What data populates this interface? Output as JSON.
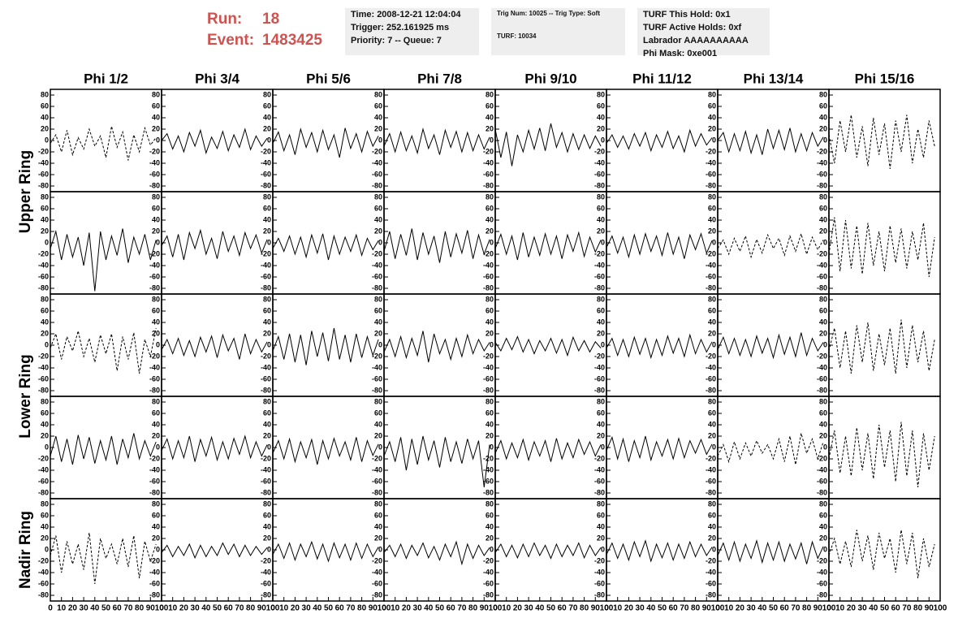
{
  "header": {
    "run_label": "Run:",
    "run": "18",
    "event_label": "Event:",
    "event": "1483425"
  },
  "info": [
    [
      "Time: 2008-12-21 12:04:04",
      "Trigger: 252.161925 ms",
      "Priority: 7 -- Queue: 7"
    ],
    [
      "Trig Num: 10025 -- Trig Type: Soft",
      "TURF: 10034"
    ],
    [
      "TURF This Hold: 0x1",
      "TURF Active Holds: 0xf",
      "Labrador AAAAAAAAAA",
      "Phi Mask: 0xe001"
    ]
  ],
  "chart_data": {
    "type": "line",
    "columns": [
      "Phi 1/2",
      "Phi 3/4",
      "Phi 5/6",
      "Phi 7/8",
      "Phi 9/10",
      "Phi 11/12",
      "Phi 13/14",
      "Phi 15/16"
    ],
    "row_labels": [
      "Upper Ring",
      "Lower Ring",
      "Nadir Ring"
    ],
    "xlim": [
      0,
      100
    ],
    "xticks": [
      0,
      10,
      20,
      30,
      40,
      50,
      60,
      70,
      80,
      90,
      100
    ],
    "ylim": [
      -90,
      90
    ],
    "yticks": [
      80,
      60,
      40,
      20,
      0,
      -20,
      -40,
      -60,
      -80
    ],
    "color": "#000000",
    "x": [
      0,
      5,
      10,
      15,
      20,
      25,
      30,
      35,
      40,
      45,
      50,
      55,
      60,
      65,
      70,
      75,
      80,
      85,
      90,
      95
    ],
    "panels": [
      [
        {
          "dashed": true,
          "values": [
            -5,
            10,
            -20,
            18,
            -25,
            5,
            -15,
            20,
            -10,
            8,
            -30,
            25,
            -12,
            15,
            -35,
            10,
            -20,
            22,
            -8,
            5
          ]
        },
        {
          "dashed": false,
          "values": [
            0,
            12,
            -15,
            8,
            -20,
            14,
            -10,
            18,
            -22,
            6,
            -14,
            16,
            -18,
            10,
            -12,
            20,
            -16,
            8,
            -10,
            4
          ]
        },
        {
          "dashed": false,
          "values": [
            -5,
            15,
            -18,
            10,
            -25,
            20,
            -12,
            14,
            -20,
            18,
            -16,
            10,
            -30,
            22,
            -14,
            12,
            -20,
            16,
            -10,
            8
          ]
        },
        {
          "dashed": false,
          "values": [
            -10,
            12,
            -20,
            15,
            -18,
            8,
            -22,
            20,
            -14,
            10,
            -25,
            18,
            -12,
            16,
            -20,
            14,
            -18,
            10,
            -15,
            6
          ]
        },
        {
          "dashed": false,
          "values": [
            20,
            -30,
            15,
            -45,
            10,
            -20,
            18,
            -15,
            22,
            -18,
            30,
            -12,
            14,
            -20,
            12,
            -16,
            10,
            -14,
            8,
            -10
          ]
        },
        {
          "dashed": false,
          "values": [
            -5,
            10,
            -12,
            8,
            -15,
            12,
            -10,
            14,
            -18,
            10,
            -12,
            16,
            -14,
            8,
            -20,
            18,
            -10,
            12,
            -8,
            5
          ]
        },
        {
          "dashed": false,
          "values": [
            0,
            14,
            -20,
            12,
            -18,
            16,
            -22,
            10,
            -25,
            20,
            -14,
            18,
            -16,
            22,
            -20,
            12,
            -18,
            14,
            -10,
            6
          ]
        },
        {
          "dashed": true,
          "values": [
            10,
            -40,
            35,
            -20,
            45,
            -30,
            25,
            -45,
            40,
            -25,
            30,
            -50,
            35,
            -20,
            45,
            -40,
            20,
            -30,
            35,
            -10
          ]
        }
      ],
      [
        {
          "dashed": false,
          "values": [
            -10,
            20,
            -30,
            15,
            -25,
            10,
            -40,
            18,
            -85,
            20,
            -30,
            12,
            -22,
            25,
            -35,
            10,
            -20,
            15,
            -30,
            5
          ]
        },
        {
          "dashed": false,
          "values": [
            -5,
            12,
            -25,
            15,
            -30,
            18,
            -10,
            22,
            -20,
            8,
            -28,
            20,
            -15,
            12,
            -22,
            18,
            -10,
            14,
            -18,
            6
          ]
        },
        {
          "dashed": false,
          "values": [
            -10,
            8,
            -15,
            12,
            -20,
            10,
            -25,
            14,
            -18,
            16,
            -30,
            12,
            -20,
            10,
            -15,
            14,
            -22,
            8,
            -12,
            4
          ]
        },
        {
          "dashed": false,
          "values": [
            -15,
            20,
            -28,
            15,
            -22,
            25,
            -30,
            18,
            -20,
            12,
            -35,
            20,
            -25,
            16,
            -18,
            22,
            -28,
            14,
            -20,
            6
          ]
        },
        {
          "dashed": false,
          "values": [
            -10,
            15,
            -20,
            12,
            -30,
            18,
            -25,
            10,
            -22,
            16,
            -20,
            12,
            -28,
            14,
            -15,
            18,
            -24,
            10,
            -16,
            5
          ]
        },
        {
          "dashed": false,
          "values": [
            -8,
            12,
            -18,
            10,
            -25,
            14,
            -20,
            16,
            -15,
            12,
            -22,
            18,
            -20,
            10,
            -28,
            14,
            -12,
            16,
            -18,
            4
          ]
        },
        {
          "dashed": true,
          "values": [
            -10,
            5,
            -20,
            8,
            -15,
            12,
            -25,
            6,
            -18,
            14,
            -10,
            8,
            -22,
            12,
            -15,
            16,
            -20,
            10,
            -12,
            5
          ]
        },
        {
          "dashed": true,
          "values": [
            -20,
            45,
            -50,
            40,
            -45,
            30,
            -55,
            35,
            -40,
            20,
            -50,
            30,
            -35,
            25,
            -45,
            20,
            -30,
            35,
            -60,
            10
          ]
        }
      ],
      [
        {
          "dashed": true,
          "values": [
            -5,
            20,
            -25,
            15,
            -10,
            25,
            -20,
            12,
            -30,
            18,
            -15,
            20,
            -45,
            15,
            -25,
            22,
            -50,
            10,
            -20,
            30
          ]
        },
        {
          "dashed": false,
          "values": [
            -8,
            10,
            -15,
            12,
            -18,
            8,
            -20,
            14,
            -12,
            16,
            -22,
            18,
            -10,
            12,
            -25,
            20,
            -15,
            10,
            -12,
            6
          ]
        },
        {
          "dashed": false,
          "values": [
            -10,
            15,
            -25,
            20,
            -30,
            18,
            -35,
            25,
            -20,
            22,
            -28,
            30,
            -25,
            18,
            -30,
            20,
            -22,
            15,
            -18,
            10
          ]
        },
        {
          "dashed": false,
          "values": [
            -12,
            10,
            -20,
            15,
            -22,
            12,
            -18,
            25,
            -30,
            20,
            -15,
            10,
            -25,
            12,
            -20,
            18,
            -15,
            10,
            -10,
            5
          ]
        },
        {
          "dashed": false,
          "values": [
            5,
            -10,
            12,
            -8,
            15,
            -12,
            10,
            -15,
            8,
            -10,
            12,
            -14,
            10,
            -18,
            14,
            -10,
            8,
            -12,
            6,
            -5
          ]
        },
        {
          "dashed": false,
          "values": [
            -5,
            12,
            -18,
            10,
            -20,
            14,
            -16,
            12,
            -22,
            10,
            -18,
            16,
            -14,
            12,
            -20,
            18,
            -15,
            10,
            -12,
            6
          ]
        },
        {
          "dashed": false,
          "values": [
            -8,
            14,
            -15,
            12,
            -18,
            10,
            -20,
            16,
            -14,
            12,
            -22,
            18,
            -16,
            14,
            -20,
            22,
            -18,
            12,
            -10,
            5
          ]
        },
        {
          "dashed": true,
          "values": [
            -10,
            30,
            -40,
            25,
            -50,
            35,
            -30,
            40,
            -45,
            20,
            -35,
            30,
            -50,
            45,
            -40,
            35,
            -30,
            25,
            -45,
            10
          ]
        }
      ],
      [
        {
          "dashed": false,
          "values": [
            -15,
            20,
            -25,
            15,
            -30,
            22,
            -20,
            18,
            -28,
            12,
            -22,
            20,
            -30,
            15,
            -18,
            25,
            -20,
            12,
            -15,
            10
          ]
        },
        {
          "dashed": false,
          "values": [
            -5,
            15,
            -20,
            12,
            -18,
            20,
            -25,
            14,
            -15,
            18,
            -22,
            10,
            -20,
            16,
            -12,
            20,
            -18,
            10,
            -15,
            5
          ]
        },
        {
          "dashed": false,
          "values": [
            -10,
            12,
            -20,
            15,
            -25,
            10,
            -18,
            14,
            -30,
            12,
            -20,
            16,
            -15,
            10,
            -22,
            18,
            -25,
            12,
            -14,
            6
          ]
        },
        {
          "dashed": false,
          "values": [
            -15,
            10,
            -25,
            18,
            -40,
            15,
            -30,
            20,
            -22,
            12,
            -35,
            18,
            -25,
            10,
            -28,
            15,
            -20,
            12,
            -70,
            5
          ]
        },
        {
          "dashed": false,
          "values": [
            -10,
            12,
            -20,
            8,
            -18,
            14,
            -22,
            10,
            -15,
            12,
            -25,
            16,
            -20,
            8,
            -18,
            14,
            -12,
            10,
            -15,
            5
          ]
        },
        {
          "dashed": false,
          "values": [
            -5,
            18,
            -20,
            15,
            -25,
            12,
            -18,
            20,
            -22,
            10,
            -15,
            14,
            -20,
            16,
            -18,
            12,
            -10,
            14,
            -12,
            6
          ]
        },
        {
          "dashed": true,
          "values": [
            -15,
            5,
            -25,
            10,
            -20,
            8,
            -15,
            12,
            -10,
            5,
            -20,
            15,
            -25,
            20,
            -30,
            25,
            -10,
            15,
            -20,
            10
          ]
        },
        {
          "dashed": true,
          "values": [
            -20,
            30,
            -45,
            20,
            -50,
            35,
            -40,
            25,
            -55,
            40,
            -35,
            30,
            -60,
            45,
            -50,
            30,
            -70,
            25,
            -40,
            20
          ]
        }
      ],
      [
        {
          "dashed": true,
          "values": [
            -10,
            25,
            -40,
            15,
            -25,
            10,
            -35,
            30,
            -60,
            20,
            -15,
            10,
            -25,
            20,
            -30,
            25,
            -50,
            15,
            -20,
            10
          ]
        },
        {
          "dashed": false,
          "values": [
            -5,
            8,
            -12,
            6,
            -10,
            10,
            -14,
            8,
            -12,
            6,
            -10,
            12,
            -8,
            10,
            -12,
            8,
            -10,
            6,
            -8,
            4
          ]
        },
        {
          "dashed": false,
          "values": [
            -8,
            10,
            -15,
            12,
            -18,
            10,
            -12,
            14,
            -16,
            10,
            -20,
            12,
            -14,
            10,
            -18,
            12,
            -15,
            10,
            -12,
            5
          ]
        },
        {
          "dashed": false,
          "values": [
            -5,
            8,
            -12,
            10,
            -15,
            8,
            -10,
            12,
            -14,
            6,
            -18,
            10,
            -12,
            14,
            -25,
            10,
            -15,
            8,
            -10,
            4
          ]
        },
        {
          "dashed": false,
          "values": [
            -5,
            10,
            -12,
            8,
            -14,
            10,
            -12,
            12,
            -10,
            8,
            -15,
            10,
            -12,
            8,
            -10,
            12,
            -14,
            8,
            -10,
            4
          ]
        },
        {
          "dashed": false,
          "values": [
            -8,
            12,
            -15,
            10,
            -18,
            14,
            -12,
            16,
            -20,
            10,
            -14,
            12,
            -18,
            10,
            -15,
            14,
            -12,
            10,
            -10,
            5
          ]
        },
        {
          "dashed": false,
          "values": [
            -10,
            12,
            -18,
            14,
            -20,
            10,
            -15,
            16,
            -22,
            12,
            -18,
            14,
            -20,
            10,
            -16,
            12,
            -25,
            14,
            -15,
            6
          ]
        },
        {
          "dashed": true,
          "values": [
            -10,
            20,
            -25,
            15,
            -30,
            35,
            -20,
            25,
            -35,
            30,
            -15,
            20,
            -40,
            35,
            -25,
            30,
            -50,
            20,
            -30,
            10
          ]
        }
      ]
    ]
  }
}
